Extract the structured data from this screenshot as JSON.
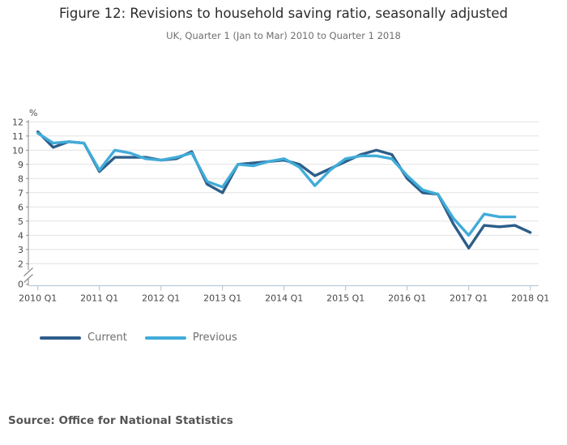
{
  "header": {
    "title": "Figure 12: Revisions to household saving ratio, seasonally adjusted",
    "subtitle": "UK, Quarter 1 (Jan to Mar) 2010 to Quarter 1 2018"
  },
  "chart_data": {
    "type": "line",
    "title": "Figure 12: Revisions to household saving ratio, seasonally adjusted",
    "subtitle": "UK, Quarter 1 (Jan to Mar) 2010 to Quarter 1 2018",
    "unit_label": "%",
    "ylabel": "%",
    "xlabel": "",
    "ylim": [
      0,
      12
    ],
    "grid": "horizontal",
    "axis_break": true,
    "legend_position": "bottom-left",
    "y_ticks": [
      12,
      11,
      10,
      9,
      8,
      7,
      6,
      5,
      4,
      3,
      2,
      0
    ],
    "x_tick_labels": [
      "2010 Q1",
      "2011 Q1",
      "2012 Q1",
      "2013 Q1",
      "2014 Q1",
      "2015 Q1",
      "2016 Q1",
      "2017 Q1",
      "2018 Q1"
    ],
    "categories": [
      "2010 Q1",
      "2010 Q2",
      "2010 Q3",
      "2010 Q4",
      "2011 Q1",
      "2011 Q2",
      "2011 Q3",
      "2011 Q4",
      "2012 Q1",
      "2012 Q2",
      "2012 Q3",
      "2012 Q4",
      "2013 Q1",
      "2013 Q2",
      "2013 Q3",
      "2013 Q4",
      "2014 Q1",
      "2014 Q2",
      "2014 Q3",
      "2014 Q4",
      "2015 Q1",
      "2015 Q2",
      "2015 Q3",
      "2015 Q4",
      "2016 Q1",
      "2016 Q2",
      "2016 Q3",
      "2016 Q4",
      "2017 Q1",
      "2017 Q2",
      "2017 Q3",
      "2017 Q4",
      "2018 Q1"
    ],
    "series": [
      {
        "name": "Current",
        "color": "#2D5E8A",
        "values": [
          11.3,
          10.2,
          10.6,
          10.5,
          8.5,
          9.5,
          9.5,
          9.5,
          9.3,
          9.4,
          9.9,
          7.6,
          7.0,
          9.0,
          9.1,
          9.2,
          9.3,
          9.0,
          8.2,
          8.7,
          9.2,
          9.7,
          10.0,
          9.7,
          8.0,
          7.0,
          6.9,
          4.8,
          3.1,
          4.7,
          4.6,
          4.7,
          4.2
        ]
      },
      {
        "name": "Previous",
        "color": "#41ACD9",
        "values": [
          11.2,
          10.5,
          10.6,
          10.5,
          8.6,
          10.0,
          9.8,
          9.4,
          9.3,
          9.5,
          9.8,
          7.8,
          7.4,
          9.0,
          8.9,
          9.2,
          9.4,
          8.8,
          7.5,
          8.6,
          9.4,
          9.6,
          9.6,
          9.4,
          8.2,
          7.2,
          6.9,
          5.2,
          4.0,
          5.5,
          5.3,
          5.3,
          null
        ]
      }
    ]
  },
  "legend": {
    "items": [
      {
        "label": "Current",
        "color": "#2D5E8A"
      },
      {
        "label": "Previous",
        "color": "#41ACD9"
      }
    ]
  },
  "source": "Source: Office for National Statistics",
  "colors": {
    "grid": "#e2e2e2",
    "y_axis": "#8a8a8a",
    "x_axis": "#afc3d2",
    "tick_text": "#474747"
  }
}
